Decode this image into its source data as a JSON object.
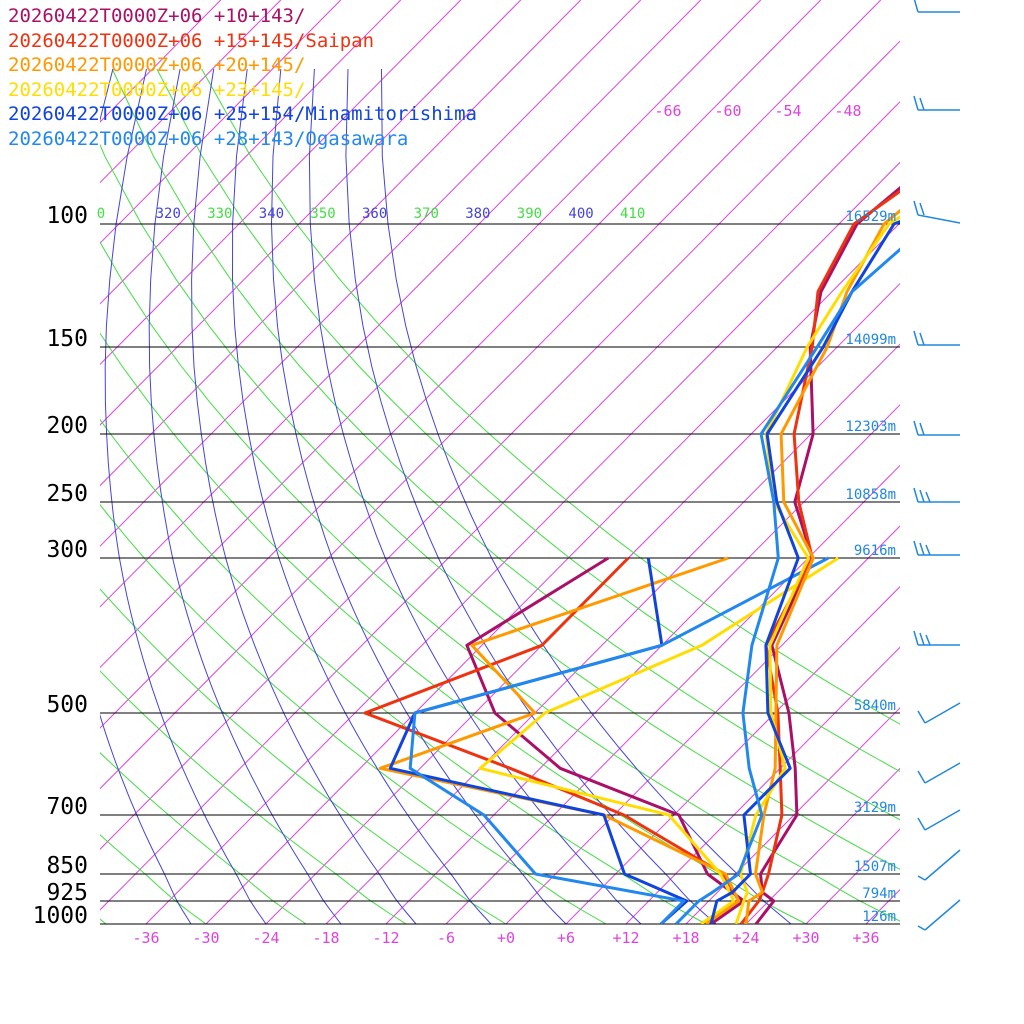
{
  "chart_data": {
    "type": "line",
    "title": "",
    "xlabel": "",
    "ylabel": "",
    "pressure_levels": [
      100,
      150,
      200,
      250,
      300,
      500,
      700,
      850,
      925,
      1000
    ],
    "height_labels": [
      {
        "p": 100,
        "text": "16529m"
      },
      {
        "p": 150,
        "text": "14099m"
      },
      {
        "p": 200,
        "text": "12303m"
      },
      {
        "p": 250,
        "text": "10858m"
      },
      {
        "p": 300,
        "text": "9616m"
      },
      {
        "p": 500,
        "text": "5840m"
      },
      {
        "p": 700,
        "text": "3129m"
      },
      {
        "p": 850,
        "text": "1507m"
      },
      {
        "p": 925,
        "text": "794m"
      },
      {
        "p": 1000,
        "text": "126m"
      }
    ],
    "x_ticks": [
      "-36",
      "-30",
      "-24",
      "-18",
      "-12",
      "-6",
      "+0",
      "+6",
      "+12",
      "+18",
      "+24",
      "+30",
      "+36"
    ],
    "x_tick_values": [
      -36,
      -30,
      -24,
      -18,
      -12,
      -6,
      0,
      6,
      12,
      18,
      24,
      30,
      36
    ],
    "upper_temp_labels": [
      "-66",
      "-60",
      "-54",
      "-48"
    ],
    "theta_labels": [
      {
        "text": "0",
        "color": "#44dd44"
      },
      {
        "text": "320",
        "color": "#4444dd"
      },
      {
        "text": "330",
        "color": "#44dd44"
      },
      {
        "text": "340",
        "color": "#4444dd"
      },
      {
        "text": "350",
        "color": "#44dd44"
      },
      {
        "text": "360",
        "color": "#4444dd"
      },
      {
        "text": "370",
        "color": "#44dd44"
      },
      {
        "text": "380",
        "color": "#4444dd"
      },
      {
        "text": "390",
        "color": "#44dd44"
      },
      {
        "text": "400",
        "color": "#4444dd"
      },
      {
        "text": "410",
        "color": "#44dd44"
      }
    ],
    "axis_colors": {
      "isotherm": "#dd44dd",
      "dry_adiabat": "#44dd44",
      "moist_adiabat": "#4444dd",
      "height_label": "#2288dd",
      "wind_barb": "#2288dd"
    },
    "series": [
      {
        "name": "20260422T0000Z+06 +10+143/",
        "color": "#aa1166",
        "temp": [
          [
            1000,
            25
          ],
          [
            925,
            24.5
          ],
          [
            900,
            22.5
          ],
          [
            850,
            20.5
          ],
          [
            800,
            19.8
          ],
          [
            700,
            18.3
          ],
          [
            600,
            13.5
          ],
          [
            500,
            7.4
          ],
          [
            400,
            -1
          ],
          [
            300,
            -5.6
          ],
          [
            250,
            -12.9
          ],
          [
            200,
            -17.8
          ],
          [
            150,
            -26.7
          ],
          [
            125,
            -31.1
          ],
          [
            100,
            -34.2
          ],
          [
            70,
            -32
          ]
        ],
        "dew": [
          [
            1000,
            20.5
          ],
          [
            925,
            21.5
          ],
          [
            850,
            15.2
          ],
          [
            700,
            6.5
          ],
          [
            600,
            -10
          ],
          [
            500,
            -22
          ],
          [
            400,
            -31.5
          ],
          [
            300,
            -26
          ]
        ]
      },
      {
        "name": "20260422T0000Z+06 +15+145/Saipan",
        "color": "#ee3311",
        "temp": [
          [
            1000,
            23.5
          ],
          [
            925,
            23
          ],
          [
            900,
            22.5
          ],
          [
            850,
            21.3
          ],
          [
            700,
            16.8
          ],
          [
            600,
            12
          ],
          [
            500,
            6.3
          ],
          [
            400,
            -1.6
          ],
          [
            300,
            -5.6
          ],
          [
            250,
            -12.5
          ],
          [
            200,
            -19.7
          ],
          [
            150,
            -26.5
          ],
          [
            125,
            -31.4
          ],
          [
            100,
            -34.5
          ],
          [
            70,
            -30
          ]
        ],
        "dew": [
          [
            1000,
            19.5
          ],
          [
            925,
            21
          ],
          [
            850,
            16.8
          ],
          [
            700,
            1
          ],
          [
            600,
            -15
          ],
          [
            500,
            -35
          ],
          [
            400,
            -24
          ],
          [
            300,
            -24
          ]
        ]
      },
      {
        "name": "20260422T0000Z+06 +20+145/",
        "color": "#ff9900",
        "temp": [
          [
            1000,
            24
          ],
          [
            925,
            22
          ],
          [
            900,
            22.5
          ],
          [
            850,
            20
          ],
          [
            700,
            15
          ],
          [
            600,
            11.5
          ],
          [
            500,
            6.1
          ],
          [
            400,
            -0.5
          ],
          [
            300,
            -5.5
          ],
          [
            250,
            -14
          ],
          [
            200,
            -21
          ],
          [
            150,
            -25
          ],
          [
            125,
            -28.5
          ],
          [
            100,
            -31.5
          ],
          [
            80,
            -30
          ]
        ],
        "dew": [
          [
            1000,
            20
          ],
          [
            925,
            21
          ],
          [
            850,
            17
          ],
          [
            700,
            -1
          ],
          [
            600,
            -28
          ],
          [
            500,
            -18
          ],
          [
            400,
            -31
          ],
          [
            300,
            -14
          ]
        ]
      },
      {
        "name": "20260422T0000Z+06 +23+145/",
        "color": "#ffdd00",
        "temp": [
          [
            1000,
            23
          ],
          [
            925,
            21.5
          ],
          [
            900,
            21
          ],
          [
            850,
            18.5
          ],
          [
            700,
            14.2
          ],
          [
            600,
            12.5
          ],
          [
            500,
            5.6
          ],
          [
            400,
            -1.2
          ],
          [
            300,
            -6
          ],
          [
            250,
            -15
          ],
          [
            200,
            -22.5
          ],
          [
            150,
            -27
          ],
          [
            125,
            -29
          ],
          [
            100,
            -31
          ],
          [
            80,
            -27
          ]
        ],
        "dew": [
          [
            1000,
            19.5
          ],
          [
            925,
            20.5
          ],
          [
            850,
            16.5
          ],
          [
            700,
            5.5
          ],
          [
            600,
            -18
          ],
          [
            500,
            -17
          ],
          [
            400,
            -8
          ],
          [
            300,
            -3
          ]
        ]
      },
      {
        "name": "20260422T0000Z+06 +25+154/Minamitorishima",
        "color": "#1144dd",
        "temp": [
          [
            1000,
            20.5
          ],
          [
            925,
            18.8
          ],
          [
            900,
            19.5
          ],
          [
            850,
            19.5
          ],
          [
            700,
            13
          ],
          [
            600,
            13
          ],
          [
            500,
            5.3
          ],
          [
            400,
            -1.6
          ],
          [
            300,
            -7
          ],
          [
            250,
            -14.7
          ],
          [
            200,
            -22.4
          ],
          [
            150,
            -25.4
          ],
          [
            125,
            -28
          ],
          [
            100,
            -30.5
          ],
          [
            80,
            -20
          ]
        ],
        "dew": [
          [
            1000,
            15.5
          ],
          [
            925,
            15.8
          ],
          [
            850,
            6.9
          ],
          [
            700,
            -1
          ],
          [
            600,
            -27
          ],
          [
            500,
            -30
          ],
          [
            400,
            -12
          ],
          [
            300,
            -22
          ]
        ]
      },
      {
        "name": "20260422T0000Z+06 +28+143/Ogasawara",
        "color": "#2288ee",
        "temp": [
          [
            1000,
            17
          ],
          [
            925,
            17
          ],
          [
            900,
            17.5
          ],
          [
            850,
            18.3
          ],
          [
            700,
            14.8
          ],
          [
            600,
            8.9
          ],
          [
            500,
            2.8
          ],
          [
            400,
            -3
          ],
          [
            300,
            -9
          ],
          [
            250,
            -15
          ],
          [
            200,
            -23
          ],
          [
            150,
            -26
          ],
          [
            125,
            -28
          ],
          [
            100,
            -27
          ],
          [
            80,
            -17
          ]
        ],
        "dew": [
          [
            1000,
            15.5
          ],
          [
            925,
            15.5
          ],
          [
            850,
            -2
          ],
          [
            700,
            -13
          ],
          [
            600,
            -25
          ],
          [
            500,
            -30
          ],
          [
            400,
            -12
          ],
          [
            300,
            -4
          ]
        ]
      }
    ]
  }
}
